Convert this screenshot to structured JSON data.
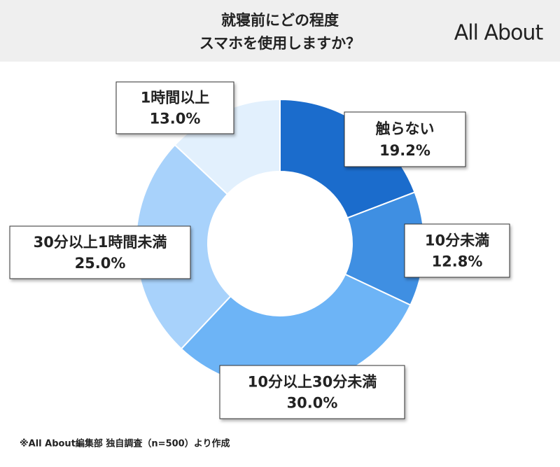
{
  "chart_data": {
    "type": "donut",
    "title": [
      "就寝前にどの程度",
      "スマホを使用しますか？"
    ],
    "logo": "All About",
    "categories": [
      "触らない",
      "10分未満",
      "10分以上30分未満",
      "30分以上1時間未満",
      "1時間以上"
    ],
    "values": [
      19.2,
      12.8,
      30.0,
      25.0,
      13.0
    ],
    "value_labels": [
      "19.2%",
      "12.8%",
      "30.0%",
      "25.0%",
      "13.0%"
    ],
    "colors": [
      "#1b6ccc",
      "#3f8fe2",
      "#6db4f6",
      "#a8d2fb",
      "#e2f0fd"
    ],
    "footnote": "※All About編集部 独自調査（n=500）より作成"
  }
}
